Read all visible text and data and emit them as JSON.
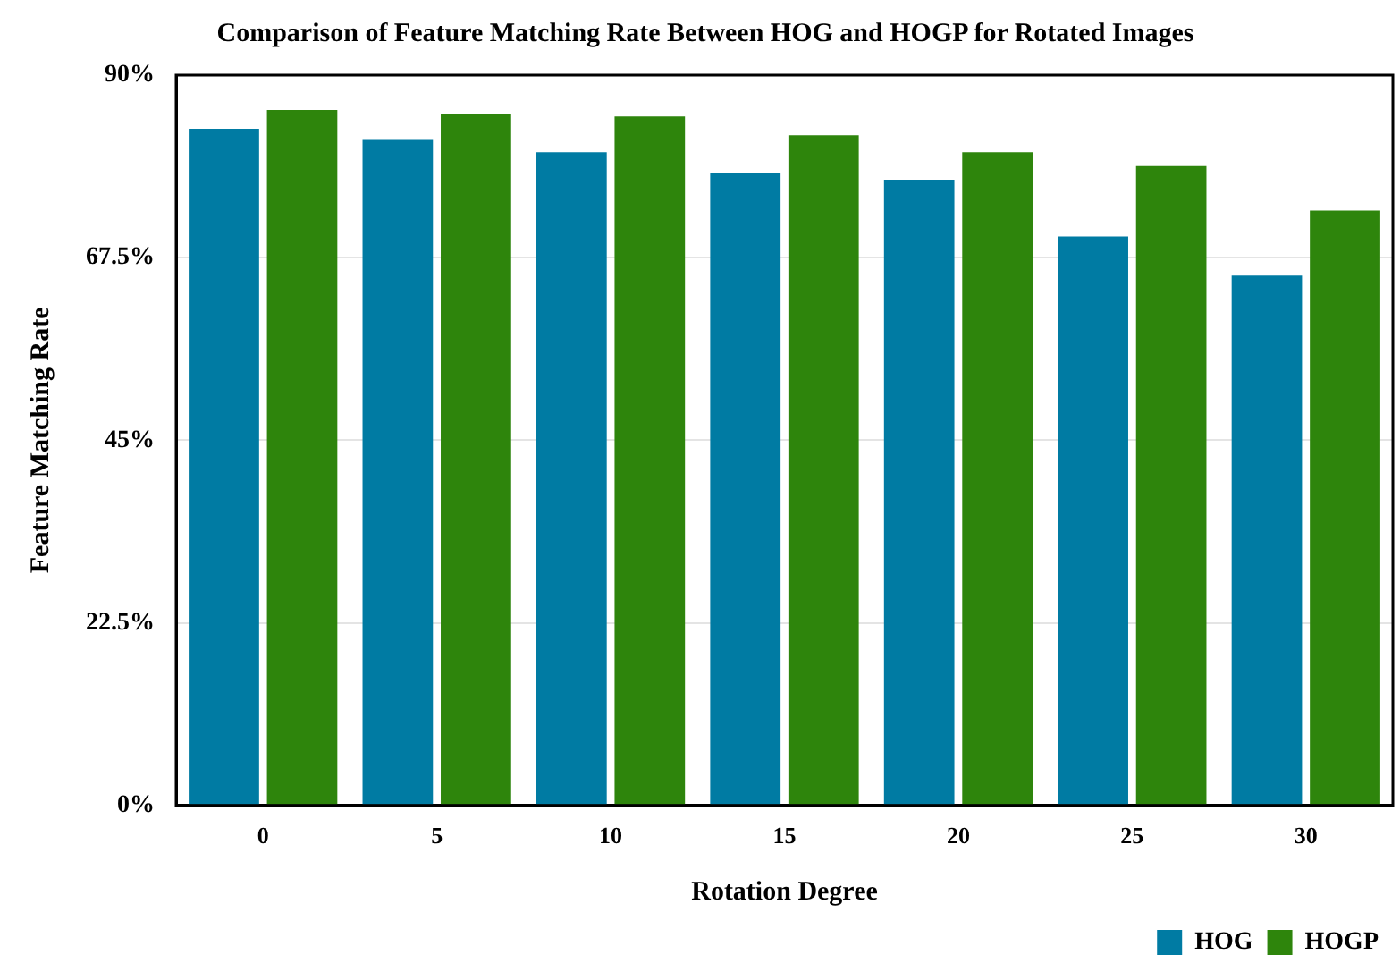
{
  "chart_data": {
    "type": "bar",
    "title": "Comparison of Feature Matching Rate Between HOG and HOGP for Rotated Images",
    "xlabel": "Rotation Degree",
    "ylabel": "Feature Matching Rate",
    "categories": [
      "0",
      "5",
      "10",
      "15",
      "20",
      "25",
      "30"
    ],
    "series": [
      {
        "name": "HOG",
        "color": "#007ba3",
        "values": [
          83.4,
          82.0,
          80.5,
          77.9,
          77.1,
          70.1,
          65.3
        ]
      },
      {
        "name": "HOGP",
        "color": "#2e850c",
        "values": [
          85.7,
          85.2,
          84.9,
          82.6,
          80.5,
          78.8,
          73.3
        ]
      }
    ],
    "ylim": [
      0,
      90
    ],
    "yticks": [
      {
        "value": 0,
        "label": "0%"
      },
      {
        "value": 22.5,
        "label": "22.5%"
      },
      {
        "value": 45,
        "label": "45%"
      },
      {
        "value": 67.5,
        "label": "67.5%"
      },
      {
        "value": 90,
        "label": "90%"
      }
    ],
    "grid": "y",
    "legend": "bottom right"
  }
}
